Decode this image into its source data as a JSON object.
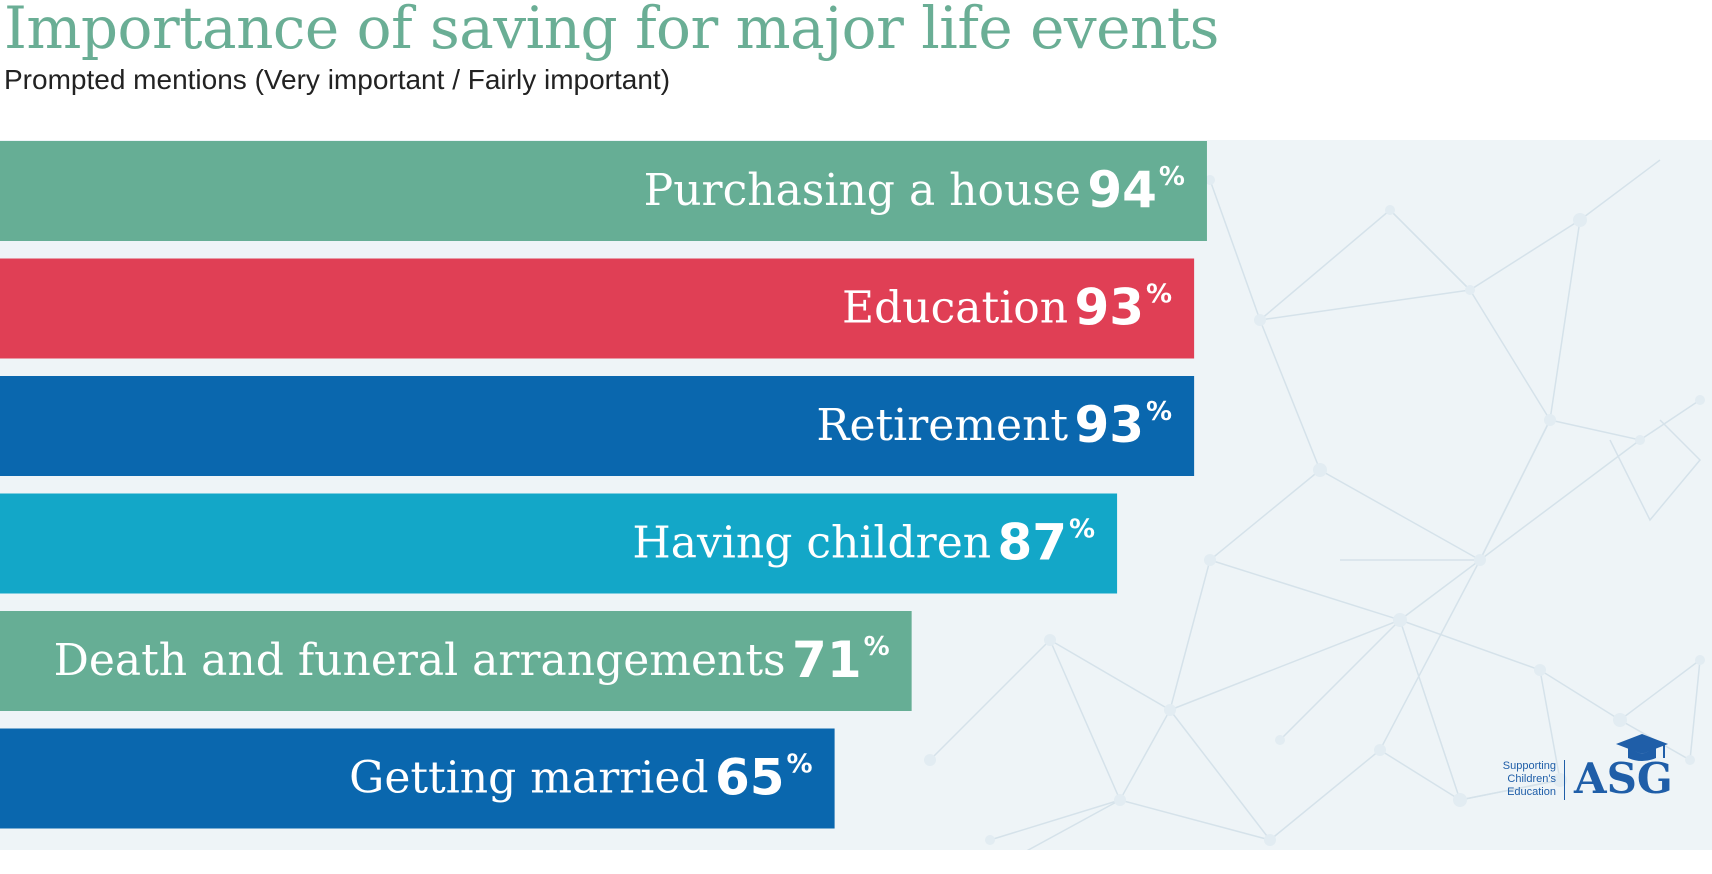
{
  "title": "Importance of saving for major life events",
  "subtitle": "Prompted mentions (Very important / Fairly important)",
  "logo": {
    "tagline": [
      "Supporting",
      "Children's",
      "Education"
    ],
    "mark": "ASG"
  },
  "colors": {
    "title": "#6aae95",
    "panel_background": "#eef4f7",
    "network_lines": "#d4e0e8"
  },
  "chart_data": {
    "type": "bar",
    "orientation": "horizontal",
    "title": "Importance of saving for major life events",
    "subtitle": "Prompted mentions (Very important / Fairly important)",
    "unit": "%",
    "xlim": [
      0,
      100
    ],
    "grid": false,
    "categories": [
      "Purchasing a house",
      "Education",
      "Retirement",
      "Having children",
      "Death and funeral arrangements",
      "Getting married"
    ],
    "values": [
      94,
      93,
      93,
      87,
      71,
      65
    ],
    "colors": [
      "#66ae95",
      "#e03f55",
      "#0a67ae",
      "#13a7c8",
      "#66ae95",
      "#0a67ae"
    ]
  }
}
